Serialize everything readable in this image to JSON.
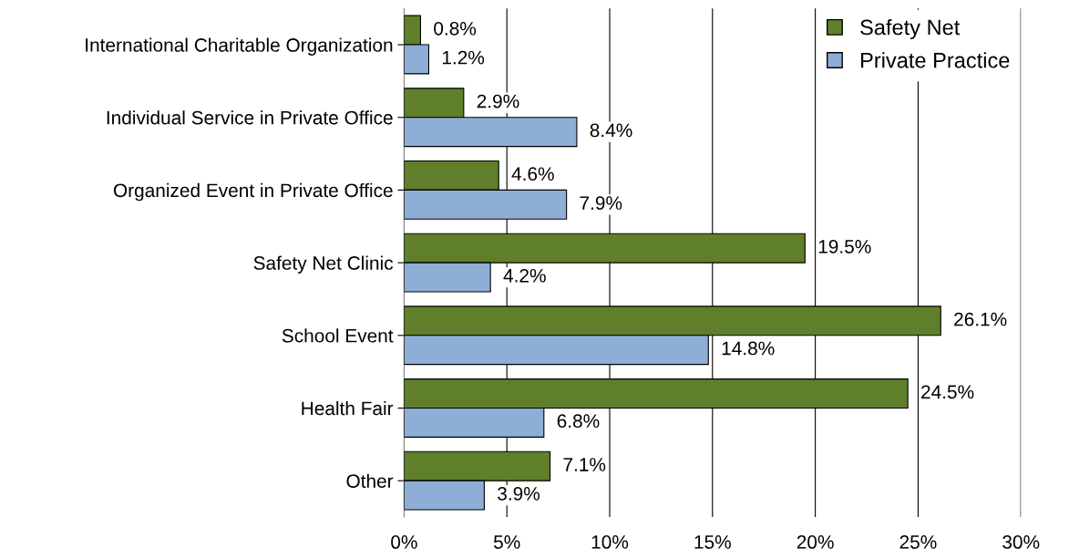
{
  "chart_data": {
    "type": "bar",
    "orientation": "horizontal",
    "categories": [
      "International Charitable Organization",
      "Individual Service in Private Office",
      "Organized Event in Private Office",
      "Safety Net Clinic",
      "School Event",
      "Health Fair",
      "Other"
    ],
    "series": [
      {
        "name": "Safety Net",
        "color": "#5f7f2a",
        "values": [
          0.8,
          2.9,
          4.6,
          19.5,
          26.1,
          24.5,
          7.1
        ],
        "value_labels": [
          "0.8%",
          "2.9%",
          "4.6%",
          "19.5%",
          "26.1%",
          "24.5%",
          "7.1%"
        ]
      },
      {
        "name": "Private Practice",
        "color": "#8eaed6",
        "values": [
          1.2,
          8.4,
          7.9,
          4.2,
          14.8,
          6.8,
          3.9
        ],
        "value_labels": [
          "1.2%",
          "8.4%",
          "7.9%",
          "4.2%",
          "14.8%",
          "6.8%",
          "3.9%"
        ]
      }
    ],
    "xlim": [
      0,
      30
    ],
    "xticks": [
      {
        "value": 0,
        "label": "0%"
      },
      {
        "value": 5,
        "label": "5%"
      },
      {
        "value": 10,
        "label": "10%"
      },
      {
        "value": 15,
        "label": "15%"
      },
      {
        "value": 20,
        "label": "20%"
      },
      {
        "value": 25,
        "label": "25%"
      },
      {
        "value": 30,
        "label": "30%"
      }
    ],
    "grid": "x",
    "legend": "top right"
  }
}
